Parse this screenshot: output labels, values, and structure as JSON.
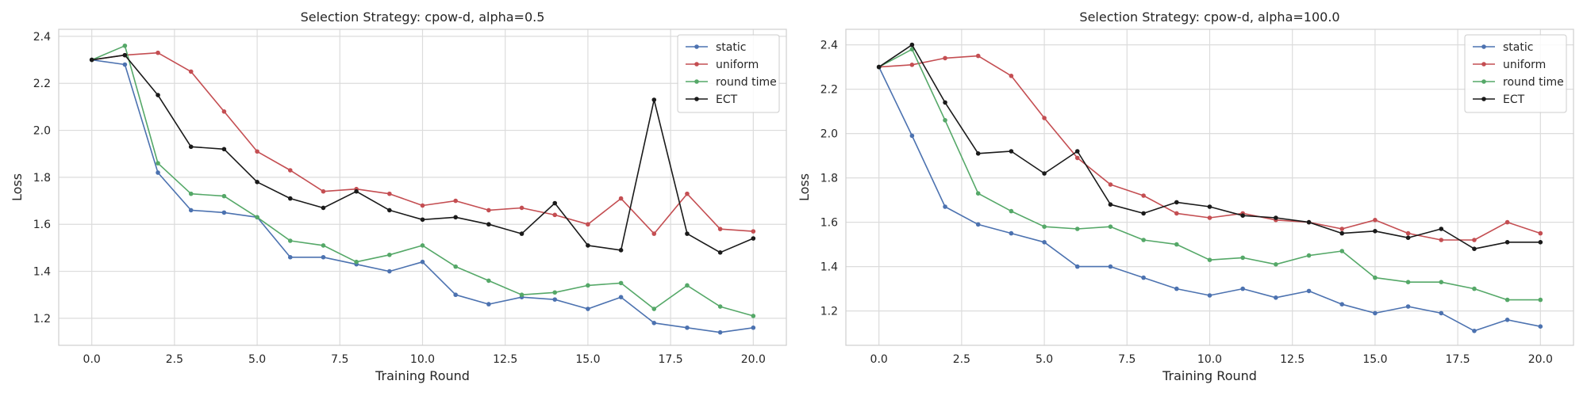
{
  "chart_data": [
    {
      "type": "line",
      "title": "Selection Strategy: cpow-d, alpha=0.5",
      "xlabel": "Training Round",
      "ylabel": "Loss",
      "xlim": [
        -1,
        21
      ],
      "ylim": [
        1.085,
        2.43
      ],
      "xticks": [
        0,
        2.5,
        5,
        7.5,
        10,
        12.5,
        15,
        17.5,
        20
      ],
      "xtick_labels": [
        "0.0",
        "2.5",
        "5.0",
        "7.5",
        "10.0",
        "12.5",
        "15.0",
        "17.5",
        "20.0"
      ],
      "yticks": [
        1.2,
        1.4,
        1.6,
        1.8,
        2.0,
        2.2,
        2.4
      ],
      "ytick_labels": [
        "1.2",
        "1.4",
        "1.6",
        "1.8",
        "2.0",
        "2.2",
        "2.4"
      ],
      "grid": true,
      "legend_position": "top-right",
      "x": [
        0,
        1,
        2,
        3,
        4,
        5,
        6,
        7,
        8,
        9,
        10,
        11,
        12,
        13,
        14,
        15,
        16,
        17,
        18,
        19,
        20
      ],
      "series": [
        {
          "name": "static",
          "color": "#4c72b0",
          "values": [
            2.3,
            2.28,
            1.82,
            1.66,
            1.65,
            1.63,
            1.46,
            1.46,
            1.43,
            1.4,
            1.44,
            1.3,
            1.26,
            1.29,
            1.28,
            1.24,
            1.29,
            1.18,
            1.16,
            1.14,
            1.16
          ]
        },
        {
          "name": "uniform",
          "color": "#c44e52",
          "values": [
            2.3,
            2.32,
            2.33,
            2.25,
            2.08,
            1.91,
            1.83,
            1.74,
            1.75,
            1.73,
            1.68,
            1.7,
            1.66,
            1.67,
            1.64,
            1.6,
            1.71,
            1.56,
            1.73,
            1.58,
            1.57
          ]
        },
        {
          "name": "round time",
          "color": "#55a868",
          "values": [
            2.3,
            2.36,
            1.86,
            1.73,
            1.72,
            1.63,
            1.53,
            1.51,
            1.44,
            1.47,
            1.51,
            1.42,
            1.36,
            1.3,
            1.31,
            1.34,
            1.35,
            1.24,
            1.34,
            1.25,
            1.21
          ]
        },
        {
          "name": "ECT",
          "color": "#1a1a1a",
          "values": [
            2.3,
            2.32,
            2.15,
            1.93,
            1.92,
            1.78,
            1.71,
            1.67,
            1.74,
            1.66,
            1.62,
            1.63,
            1.6,
            1.56,
            1.69,
            1.51,
            1.49,
            2.13,
            1.56,
            1.48,
            1.54
          ]
        }
      ]
    },
    {
      "type": "line",
      "title": "Selection Strategy: cpow-d, alpha=100.0",
      "xlabel": "Training Round",
      "ylabel": "Loss",
      "xlim": [
        -1,
        21
      ],
      "ylim": [
        1.045,
        2.47
      ],
      "xticks": [
        0,
        2.5,
        5,
        7.5,
        10,
        12.5,
        15,
        17.5,
        20
      ],
      "xtick_labels": [
        "0.0",
        "2.5",
        "5.0",
        "7.5",
        "10.0",
        "12.5",
        "15.0",
        "17.5",
        "20.0"
      ],
      "yticks": [
        1.2,
        1.4,
        1.6,
        1.8,
        2.0,
        2.2,
        2.4
      ],
      "ytick_labels": [
        "1.2",
        "1.4",
        "1.6",
        "1.8",
        "2.0",
        "2.2",
        "2.4"
      ],
      "grid": true,
      "legend_position": "top-right",
      "x": [
        0,
        1,
        2,
        3,
        4,
        5,
        6,
        7,
        8,
        9,
        10,
        11,
        12,
        13,
        14,
        15,
        16,
        17,
        18,
        19,
        20
      ],
      "series": [
        {
          "name": "static",
          "color": "#4c72b0",
          "values": [
            2.3,
            1.99,
            1.67,
            1.59,
            1.55,
            1.51,
            1.4,
            1.4,
            1.35,
            1.3,
            1.27,
            1.3,
            1.26,
            1.29,
            1.23,
            1.19,
            1.22,
            1.19,
            1.11,
            1.16,
            1.13
          ]
        },
        {
          "name": "uniform",
          "color": "#c44e52",
          "values": [
            2.3,
            2.31,
            2.34,
            2.35,
            2.26,
            2.07,
            1.89,
            1.77,
            1.72,
            1.64,
            1.62,
            1.64,
            1.61,
            1.6,
            1.57,
            1.61,
            1.55,
            1.52,
            1.52,
            1.6,
            1.55
          ]
        },
        {
          "name": "round time",
          "color": "#55a868",
          "values": [
            2.3,
            2.38,
            2.06,
            1.73,
            1.65,
            1.58,
            1.57,
            1.58,
            1.52,
            1.5,
            1.43,
            1.44,
            1.41,
            1.45,
            1.47,
            1.35,
            1.33,
            1.33,
            1.3,
            1.25,
            1.25
          ]
        },
        {
          "name": "ECT",
          "color": "#1a1a1a",
          "values": [
            2.3,
            2.4,
            2.14,
            1.91,
            1.92,
            1.82,
            1.92,
            1.68,
            1.64,
            1.69,
            1.67,
            1.63,
            1.62,
            1.6,
            1.55,
            1.56,
            1.53,
            1.57,
            1.48,
            1.51,
            1.51
          ]
        }
      ]
    }
  ]
}
